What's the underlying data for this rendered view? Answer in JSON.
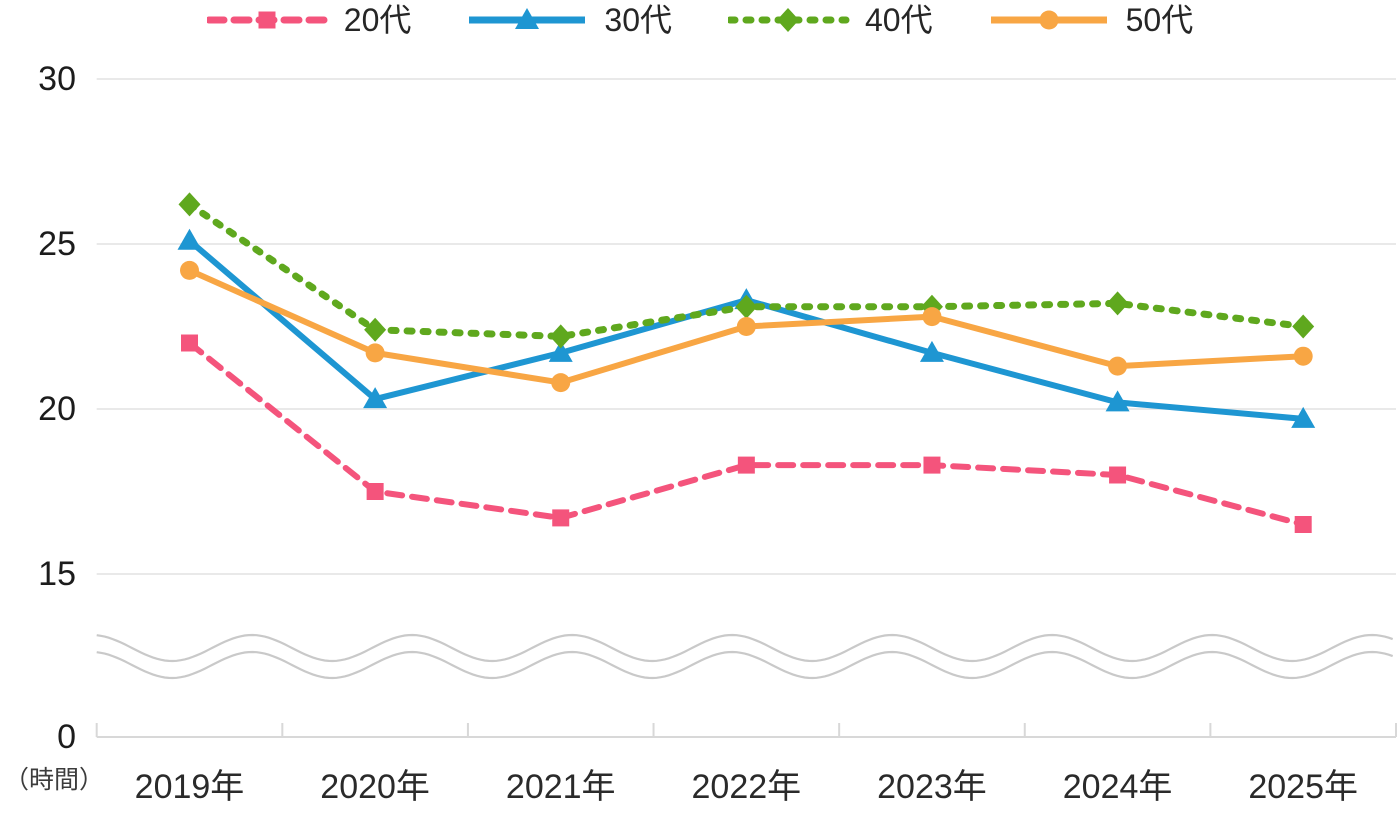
{
  "chart_data": {
    "type": "line",
    "x_categories": [
      "2019年",
      "2020年",
      "2021年",
      "2022年",
      "2023年",
      "2024年",
      "2025年"
    ],
    "y_unit_label": "（時間）",
    "y_ticks_shown": [
      0,
      15,
      20,
      25,
      30
    ],
    "y_axis_break_between": [
      0,
      15
    ],
    "ylim_effective": [
      15,
      30
    ],
    "grid": "horizontal",
    "legend_position": "top",
    "series": [
      {
        "name": "20代",
        "color": "#F4547C",
        "line_style": "dashed",
        "marker": "square",
        "values": [
          22.0,
          17.5,
          16.7,
          18.3,
          18.3,
          18.0,
          16.5
        ]
      },
      {
        "name": "30代",
        "color": "#1E96D2",
        "line_style": "solid",
        "marker": "triangle",
        "values": [
          25.1,
          20.3,
          21.7,
          23.3,
          21.7,
          20.2,
          19.7
        ]
      },
      {
        "name": "40代",
        "color": "#5FA81E",
        "line_style": "dotted",
        "marker": "diamond",
        "values": [
          26.2,
          22.4,
          22.2,
          23.1,
          23.1,
          23.2,
          22.5
        ]
      },
      {
        "name": "50代",
        "color": "#F8A644",
        "line_style": "solid",
        "marker": "circle",
        "values": [
          24.2,
          21.7,
          20.8,
          22.5,
          22.8,
          21.3,
          21.6
        ]
      }
    ]
  }
}
